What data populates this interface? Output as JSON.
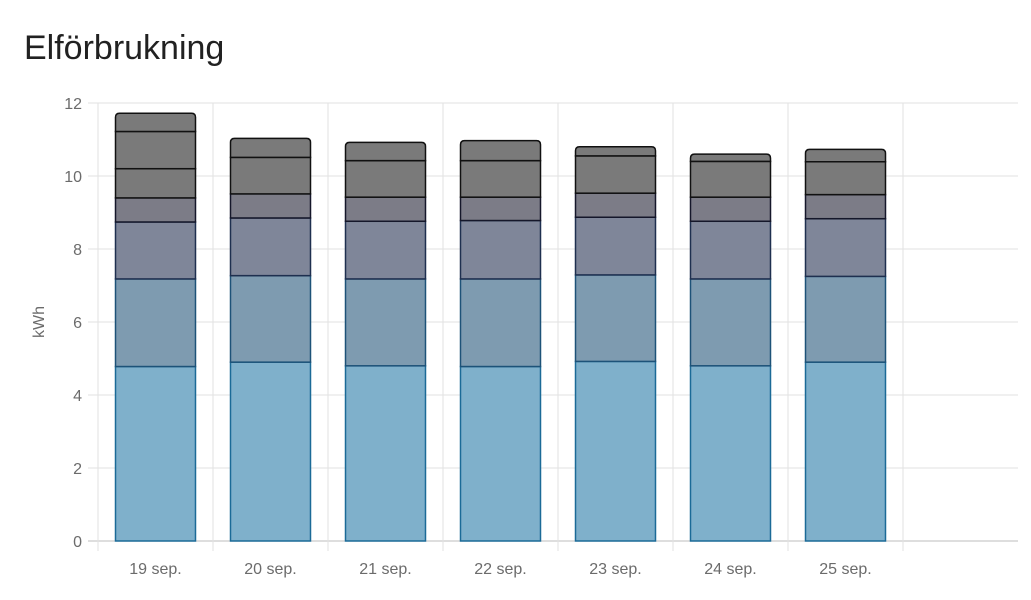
{
  "card": {
    "title": "Elförbrukning"
  },
  "chart_data": {
    "type": "bar",
    "stacked": true,
    "title": "Elförbrukning",
    "xlabel": "",
    "ylabel": "kWh",
    "ylim": [
      0,
      12
    ],
    "yticks": [
      0,
      2,
      4,
      6,
      8,
      10,
      12
    ],
    "grid": true,
    "categories": [
      "19 sep.",
      "20 sep.",
      "21 sep.",
      "22 sep.",
      "23 sep.",
      "24 sep.",
      "25 sep."
    ],
    "series": [
      {
        "color": "#7fb0cb",
        "stroke": "#1b6a97",
        "values": [
          4.78,
          4.9,
          4.8,
          4.78,
          4.92,
          4.8,
          4.9
        ]
      },
      {
        "color": "#7e9bb0",
        "stroke": "#1d5278",
        "values": [
          2.4,
          2.37,
          2.38,
          2.4,
          2.37,
          2.38,
          2.35
        ]
      },
      {
        "color": "#7f8699",
        "stroke": "#1e2f4f",
        "values": [
          1.56,
          1.58,
          1.58,
          1.6,
          1.58,
          1.58,
          1.58
        ]
      },
      {
        "color": "#7c7c87",
        "stroke": "#15172a",
        "values": [
          0.66,
          0.66,
          0.66,
          0.64,
          0.66,
          0.66,
          0.66
        ]
      },
      {
        "color": "#7a7a7a",
        "stroke": "#111111",
        "values": [
          0.8,
          1.0,
          1.0,
          1.0,
          1.02,
          0.98,
          0.9
        ]
      },
      {
        "color": "#7a7a7a",
        "stroke": "#111111",
        "values": [
          1.02,
          0.0,
          0.0,
          0.0,
          0.0,
          0.0,
          0.0
        ]
      },
      {
        "color": "#7a7a7a",
        "stroke": "#111111",
        "values": [
          0.5,
          0.52,
          0.5,
          0.55,
          0.25,
          0.2,
          0.34
        ]
      }
    ]
  }
}
